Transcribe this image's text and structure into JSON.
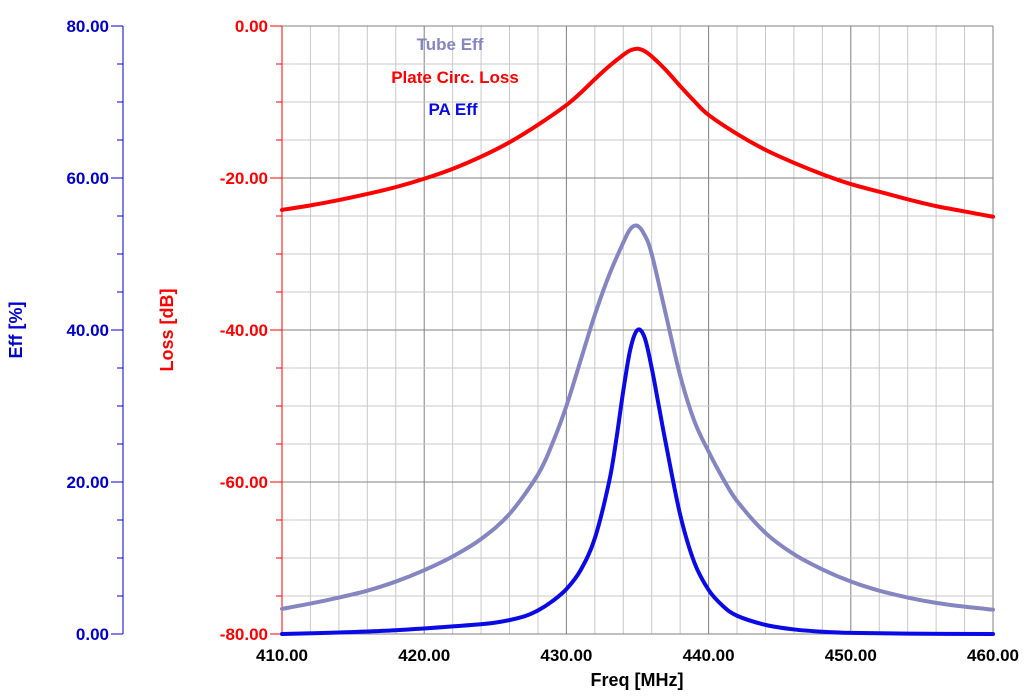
{
  "chart_data": {
    "type": "line",
    "xlabel": "Freq [MHz]",
    "xlim": [
      410,
      460
    ],
    "xticks": [
      "410.00",
      "420.00",
      "430.00",
      "440.00",
      "450.00",
      "460.00"
    ],
    "axes": {
      "loss": {
        "label": "Loss [dB]",
        "color": "#ff0000",
        "ylim": [
          -80,
          0
        ],
        "ticks": [
          "0.00",
          "-20.00",
          "-40.00",
          "-60.00",
          "-80.00"
        ]
      },
      "eff": {
        "label": "Eff [%]",
        "color": "#0000cc",
        "ylim": [
          0,
          80
        ],
        "ticks": [
          "80.00",
          "60.00",
          "40.00",
          "20.00",
          "0.00"
        ]
      }
    },
    "grid": true,
    "legend_position": "top-center",
    "series": [
      {
        "name": "Tube Eff",
        "axis": "eff",
        "color": "#8585c2",
        "x": [
          410,
          412,
          414,
          416,
          418,
          420,
          422,
          424,
          426,
          428,
          429,
          430,
          431,
          432,
          433,
          434,
          434.5,
          435,
          435.5,
          436,
          437,
          438,
          439,
          440,
          441,
          442,
          444,
          446,
          448,
          450,
          452,
          454,
          456,
          458,
          460
        ],
        "y": [
          3.3,
          4.0,
          4.8,
          5.7,
          6.9,
          8.4,
          10.2,
          12.5,
          15.8,
          21.0,
          25.0,
          30.0,
          36.0,
          42.0,
          47.2,
          51.5,
          53.3,
          53.7,
          52.5,
          50.0,
          42.0,
          34.0,
          28.0,
          24.0,
          20.5,
          17.5,
          13.3,
          10.5,
          8.5,
          6.9,
          5.7,
          4.8,
          4.1,
          3.6,
          3.2
        ]
      },
      {
        "name": "Plate Circ. Loss",
        "axis": "loss",
        "color": "#ff0000",
        "x": [
          410,
          412,
          414,
          416,
          418,
          420,
          422,
          424,
          426,
          428,
          430,
          431,
          432,
          433,
          434,
          434.5,
          435,
          435.5,
          436,
          437,
          438,
          439,
          440,
          442,
          444,
          446,
          448,
          450,
          452,
          454,
          456,
          458,
          460
        ],
        "y": [
          -24.2,
          -23.6,
          -22.9,
          -22.1,
          -21.2,
          -20.1,
          -18.8,
          -17.2,
          -15.3,
          -13.0,
          -10.4,
          -8.8,
          -7.0,
          -5.3,
          -3.8,
          -3.2,
          -3.0,
          -3.3,
          -4.0,
          -5.8,
          -7.9,
          -9.9,
          -11.7,
          -14.2,
          -16.3,
          -18.0,
          -19.5,
          -20.8,
          -21.8,
          -22.8,
          -23.7,
          -24.4,
          -25.1
        ]
      },
      {
        "name": "PA Eff",
        "axis": "eff",
        "color": "#0a0ae6",
        "x": [
          410,
          414,
          418,
          422,
          425,
          427,
          428,
          429,
          430,
          431,
          432,
          433,
          433.5,
          434,
          434.5,
          435,
          435.5,
          436,
          436.5,
          437,
          438,
          439,
          440,
          441,
          442,
          444,
          446,
          448,
          450,
          454,
          460
        ],
        "y": [
          0.0,
          0.2,
          0.5,
          1.0,
          1.5,
          2.3,
          3.1,
          4.3,
          5.9,
          8.4,
          12.6,
          20.0,
          25.5,
          32.0,
          37.5,
          40.0,
          39.0,
          35.0,
          30.0,
          25.0,
          15.7,
          9.4,
          5.8,
          3.7,
          2.4,
          1.2,
          0.6,
          0.3,
          0.15,
          0.05,
          0.0
        ]
      }
    ]
  }
}
